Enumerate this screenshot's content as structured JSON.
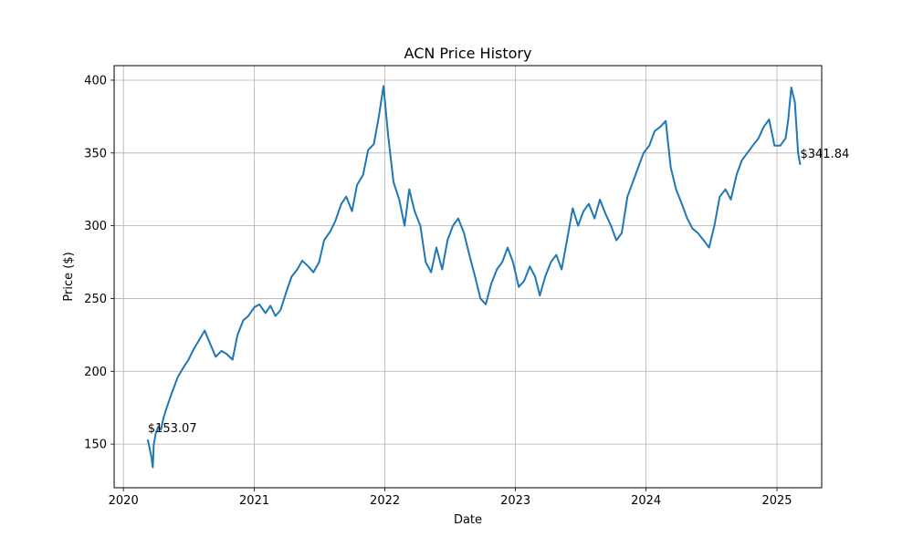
{
  "chart_data": {
    "type": "line",
    "title": "ACN Price History",
    "xlabel": "Date",
    "ylabel": "Price ($)",
    "xlim": [
      "2019-12-06",
      "2025-05-06"
    ],
    "ylim": [
      120,
      410
    ],
    "grid": true,
    "x_ticks": [
      "2020",
      "2021",
      "2022",
      "2023",
      "2024",
      "2025"
    ],
    "y_ticks": [
      150,
      200,
      250,
      300,
      350,
      400
    ],
    "colors": {
      "line": "#1f77b4",
      "grid": "#b0b0b0"
    },
    "series": [
      {
        "x": [
          "2020-03-09",
          "2020-03-16",
          "2020-03-20",
          "2020-03-23",
          "2020-03-26",
          "2020-04-01",
          "2020-04-08",
          "2020-04-15",
          "2020-04-22",
          "2020-05-01",
          "2020-05-15",
          "2020-06-01",
          "2020-06-15",
          "2020-07-01",
          "2020-07-15",
          "2020-08-01",
          "2020-08-15",
          "2020-09-01",
          "2020-09-15",
          "2020-10-01",
          "2020-10-15",
          "2020-11-01",
          "2020-11-15",
          "2020-12-01",
          "2020-12-15",
          "2021-01-01",
          "2021-01-15",
          "2021-02-01",
          "2021-02-15",
          "2021-03-01",
          "2021-03-15",
          "2021-04-01",
          "2021-04-15",
          "2021-05-01",
          "2021-05-15",
          "2021-06-01",
          "2021-06-15",
          "2021-07-01",
          "2021-07-15",
          "2021-08-01",
          "2021-08-15",
          "2021-09-01",
          "2021-09-15",
          "2021-10-01",
          "2021-10-15",
          "2021-11-01",
          "2021-11-15",
          "2021-12-01",
          "2021-12-15",
          "2021-12-28",
          "2022-01-10",
          "2022-01-25",
          "2022-02-10",
          "2022-02-25",
          "2022-03-10",
          "2022-03-25",
          "2022-04-10",
          "2022-04-25",
          "2022-05-10",
          "2022-05-25",
          "2022-06-10",
          "2022-06-25",
          "2022-07-10",
          "2022-07-25",
          "2022-08-10",
          "2022-08-25",
          "2022-09-10",
          "2022-09-25",
          "2022-10-10",
          "2022-10-25",
          "2022-11-10",
          "2022-11-25",
          "2022-12-10",
          "2022-12-25",
          "2023-01-10",
          "2023-01-25",
          "2023-02-10",
          "2023-02-25",
          "2023-03-10",
          "2023-03-25",
          "2023-04-10",
          "2023-04-25",
          "2023-05-10",
          "2023-05-25",
          "2023-06-10",
          "2023-06-25",
          "2023-07-10",
          "2023-07-25",
          "2023-08-10",
          "2023-08-25",
          "2023-09-10",
          "2023-09-25",
          "2023-10-10",
          "2023-10-25",
          "2023-11-10",
          "2023-11-25",
          "2023-12-10",
          "2023-12-25",
          "2024-01-10",
          "2024-01-25",
          "2024-02-10",
          "2024-02-25",
          "2024-03-10",
          "2024-03-25",
          "2024-04-10",
          "2024-04-25",
          "2024-05-10",
          "2024-05-25",
          "2024-06-10",
          "2024-06-25",
          "2024-07-10",
          "2024-07-25",
          "2024-08-10",
          "2024-08-25",
          "2024-09-10",
          "2024-09-25",
          "2024-10-10",
          "2024-10-25",
          "2024-11-10",
          "2024-11-25",
          "2024-12-10",
          "2024-12-25",
          "2025-01-10",
          "2025-01-25",
          "2025-02-01",
          "2025-02-10",
          "2025-02-20",
          "2025-03-01",
          "2025-03-07"
        ],
        "y": [
          153.07,
          145,
          140,
          134,
          150,
          158,
          162,
          160,
          168,
          175,
          185,
          196,
          202,
          208,
          215,
          222,
          228,
          218,
          210,
          214,
          212,
          208,
          225,
          235,
          238,
          244,
          246,
          240,
          245,
          238,
          242,
          255,
          265,
          270,
          276,
          272,
          268,
          275,
          290,
          296,
          303,
          315,
          320,
          310,
          328,
          335,
          352,
          356,
          375,
          396,
          362,
          330,
          318,
          300,
          325,
          310,
          300,
          275,
          268,
          285,
          270,
          290,
          300,
          305,
          295,
          280,
          265,
          250,
          246,
          260,
          270,
          275,
          285,
          275,
          258,
          262,
          272,
          265,
          252,
          265,
          275,
          280,
          270,
          290,
          312,
          300,
          310,
          315,
          305,
          318,
          308,
          300,
          290,
          295,
          320,
          330,
          340,
          350,
          355,
          365,
          368,
          372,
          340,
          325,
          315,
          305,
          298,
          295,
          290,
          285,
          300,
          320,
          325,
          318,
          335,
          345,
          350,
          355,
          360,
          368,
          373,
          355,
          355,
          360,
          372,
          395,
          385,
          350,
          341.84
        ]
      }
    ],
    "annotations": [
      {
        "text": "$153.07",
        "x": "2020-03-09",
        "y": 153.07
      },
      {
        "text": "$341.84",
        "x": "2025-03-07",
        "y": 341.84
      }
    ]
  }
}
